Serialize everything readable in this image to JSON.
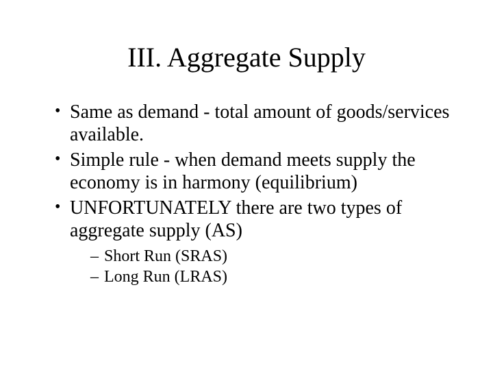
{
  "title": "III. Aggregate Supply",
  "bullets": [
    "Same as demand - total amount of goods/services available.",
    "Simple rule - when demand meets supply the economy is in harmony (equilibrium)",
    "UNFORTUNATELY there are two types of aggregate supply  (AS)"
  ],
  "sub_bullets": [
    "Short Run  (SRAS)",
    "Long Run  (LRAS)"
  ],
  "colors": {
    "background": "#ffffff",
    "text": "#000000"
  },
  "typography": {
    "font_family": "Times New Roman",
    "title_fontsize": 40,
    "bullet_fontsize": 28,
    "sub_bullet_fontsize": 24
  }
}
